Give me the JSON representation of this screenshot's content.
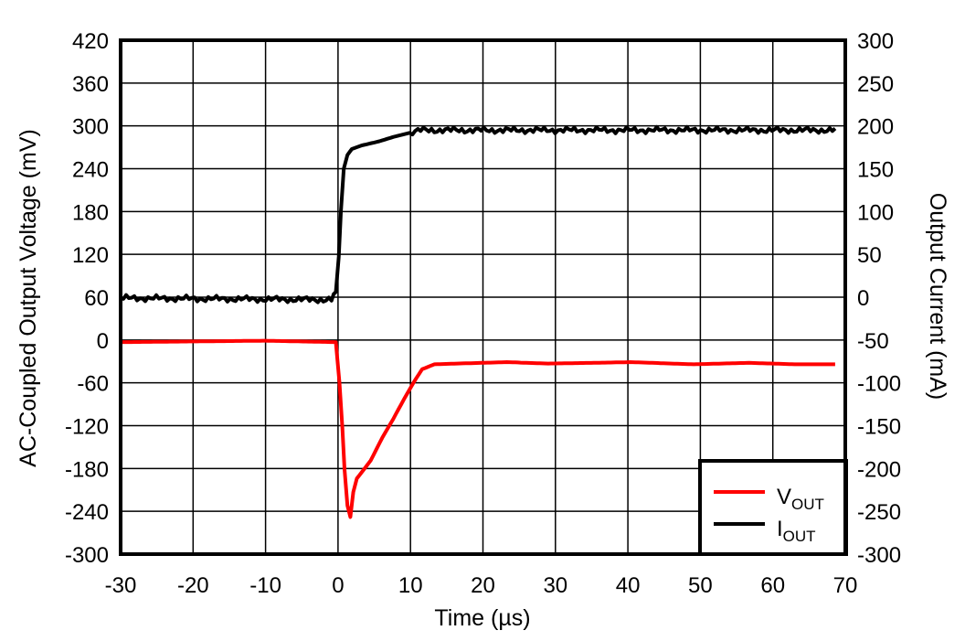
{
  "chart_data": {
    "type": "line",
    "title": "",
    "xlabel": "Time (µs)",
    "ylabel": "AC-Coupled Output Voltage (mV)",
    "y2label": "Output Current (mA)",
    "xlim": [
      -30,
      70
    ],
    "ylim": [
      -300,
      420
    ],
    "y2lim": [
      -300,
      300
    ],
    "x_ticks": [
      "-30",
      "-20",
      "-10",
      "0",
      "10",
      "20",
      "30",
      "40",
      "50",
      "60",
      "70"
    ],
    "y_ticks": [
      "420",
      "360",
      "300",
      "240",
      "180",
      "120",
      "60",
      "0",
      "-60",
      "-120",
      "-180",
      "-240",
      "-300"
    ],
    "y2_ticks": [
      "300",
      "250",
      "200",
      "150",
      "100",
      "50",
      "0",
      "-50",
      "-100",
      "-150",
      "-200",
      "-250",
      "-300"
    ],
    "grid": true,
    "legend_position": "lower right",
    "series": [
      {
        "name": "VOUT",
        "label_main": "V",
        "label_sub": "OUT",
        "axis": "left",
        "color": "#ff0000",
        "x": [
          -30,
          -10,
          -0.3,
          0.2,
          0.6,
          0.9,
          1.3,
          1.7,
          2.1,
          2.6,
          3.6,
          4.5,
          6.1,
          7.6,
          9.1,
          10.4,
          11.6,
          13.3,
          16.4,
          23.3,
          29,
          35.3,
          40.3,
          49.1,
          56.7,
          63,
          68.6
        ],
        "values": [
          -3,
          -1,
          -3,
          -60,
          -124,
          -181,
          -232,
          -248,
          -213,
          -194,
          -181,
          -169,
          -137,
          -111,
          -83,
          -60,
          -41,
          -34,
          -33,
          -31,
          -33,
          -32,
          -31,
          -34,
          -32,
          -34,
          -34
        ]
      },
      {
        "name": "IOUT",
        "label_main": "I",
        "label_sub": "OUT",
        "axis": "right",
        "color": "#000000",
        "x": [
          -30,
          -0.9,
          -0.3,
          0.1,
          0.4,
          0.8,
          1.3,
          1.9,
          3.2,
          5.7,
          7.6,
          9.5,
          11.4,
          68.6
        ],
        "values": [
          -1,
          -3,
          6,
          47,
          101,
          150,
          166,
          173,
          177,
          182,
          187,
          191,
          195,
          195
        ]
      }
    ]
  }
}
